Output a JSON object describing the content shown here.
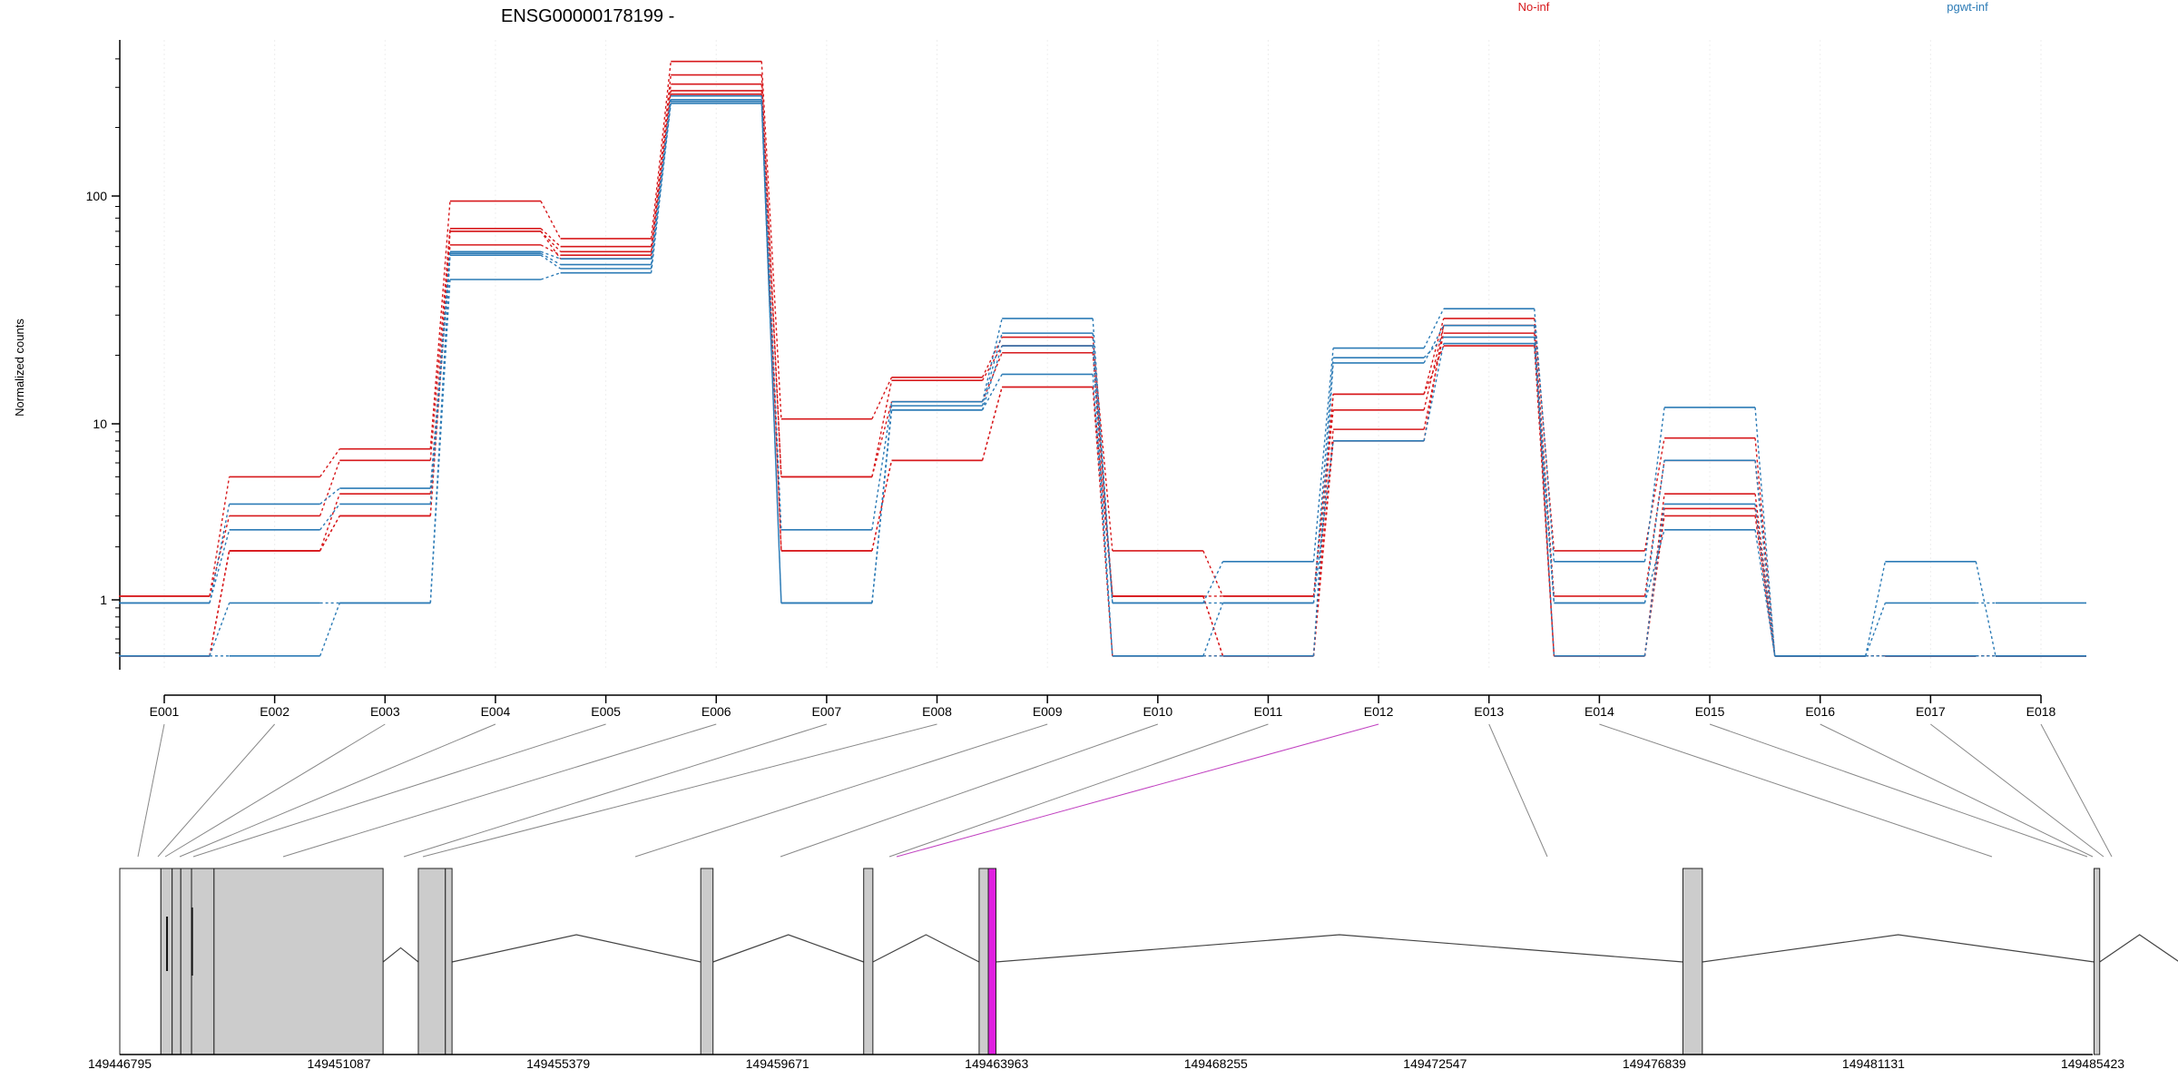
{
  "chart_data": {
    "type": "line",
    "title": "ENSG00000178199 -",
    "ylabel": "Normalized counts",
    "yscale": "log",
    "ylim": [
      0.48,
      500
    ],
    "yticks": [
      {
        "value": 1,
        "label": "1"
      },
      {
        "value": 10,
        "label": "10"
      },
      {
        "value": 100,
        "label": "100"
      }
    ],
    "categories": [
      "E001",
      "E002",
      "E003",
      "E004",
      "E005",
      "E006",
      "E007",
      "E008",
      "E009",
      "E010",
      "E011",
      "E012",
      "E013",
      "E014",
      "E015",
      "E016",
      "E017",
      "E018"
    ],
    "legend": [
      {
        "label": "No-inf",
        "color": "#d7191c"
      },
      {
        "label": "pgwt-inf",
        "color": "#2c7bb6"
      }
    ],
    "series": [
      {
        "group": "No-inf",
        "color": "#d7191c",
        "values": [
          1.05,
          5.0,
          7.2,
          95,
          65,
          390,
          10.5,
          16,
          24,
          1.9,
          1.05,
          13.5,
          29,
          1.9,
          8.3,
          0.48,
          0.48,
          0.48
        ]
      },
      {
        "group": "No-inf",
        "color": "#d7191c",
        "values": [
          1.05,
          3.0,
          6.2,
          72,
          60,
          340,
          5.0,
          15.5,
          22,
          1.05,
          1.05,
          11.5,
          27,
          1.05,
          6.2,
          0.48,
          0.48,
          0.48
        ]
      },
      {
        "group": "No-inf",
        "color": "#d7191c",
        "values": [
          0.48,
          1.9,
          4.0,
          70,
          57,
          310,
          5.0,
          12.5,
          20.5,
          1.05,
          0.48,
          9.3,
          25,
          0.48,
          4.0,
          0.48,
          0.48,
          0.48
        ]
      },
      {
        "group": "No-inf",
        "color": "#d7191c",
        "values": [
          0.48,
          1.9,
          3.0,
          61,
          55,
          290,
          1.9,
          6.2,
          14.5,
          1.05,
          0.48,
          13.5,
          22,
          0.48,
          3.0,
          0.48,
          0.48,
          0.48
        ]
      },
      {
        "group": "No-inf",
        "color": "#d7191c",
        "values": [
          0.48,
          1.9,
          3.0,
          70,
          53,
          280,
          1.9,
          6.2,
          14.5,
          0.48,
          0.48,
          8.0,
          27,
          0.48,
          3.3,
          0.48,
          0.48,
          0.48
        ]
      },
      {
        "group": "pgwt-inf",
        "color": "#2c7bb6",
        "values": [
          0.96,
          3.5,
          4.3,
          57,
          53,
          275,
          2.5,
          12.5,
          29,
          0.96,
          1.65,
          21.5,
          32,
          1.65,
          11.8,
          0.48,
          1.65,
          0.48
        ]
      },
      {
        "group": "pgwt-inf",
        "color": "#2c7bb6",
        "values": [
          0.96,
          2.5,
          3.5,
          56,
          50,
          265,
          0.96,
          12,
          25,
          0.96,
          0.96,
          19.5,
          24,
          0.96,
          6.2,
          0.48,
          0.96,
          0.96
        ]
      },
      {
        "group": "pgwt-inf",
        "color": "#2c7bb6",
        "values": [
          0.48,
          0.96,
          0.96,
          43,
          46,
          255,
          0.96,
          11.5,
          16.5,
          0.48,
          0.96,
          8.0,
          22.5,
          0.96,
          2.5,
          0.48,
          0.48,
          0.48
        ]
      },
      {
        "group": "pgwt-inf",
        "color": "#2c7bb6",
        "values": [
          0.48,
          0.48,
          0.96,
          55,
          48,
          260,
          0.96,
          11.5,
          22,
          0.48,
          0.48,
          18.5,
          27,
          0.48,
          3.5,
          0.48,
          0.48,
          0.48
        ]
      }
    ],
    "genomic_axis": {
      "ticks": [
        "149446795",
        "149451087",
        "149455379",
        "149459671",
        "149463963",
        "149468255",
        "149472547",
        "149476839",
        "149481131",
        "149485423"
      ]
    },
    "highlighted_exon": "E012"
  }
}
